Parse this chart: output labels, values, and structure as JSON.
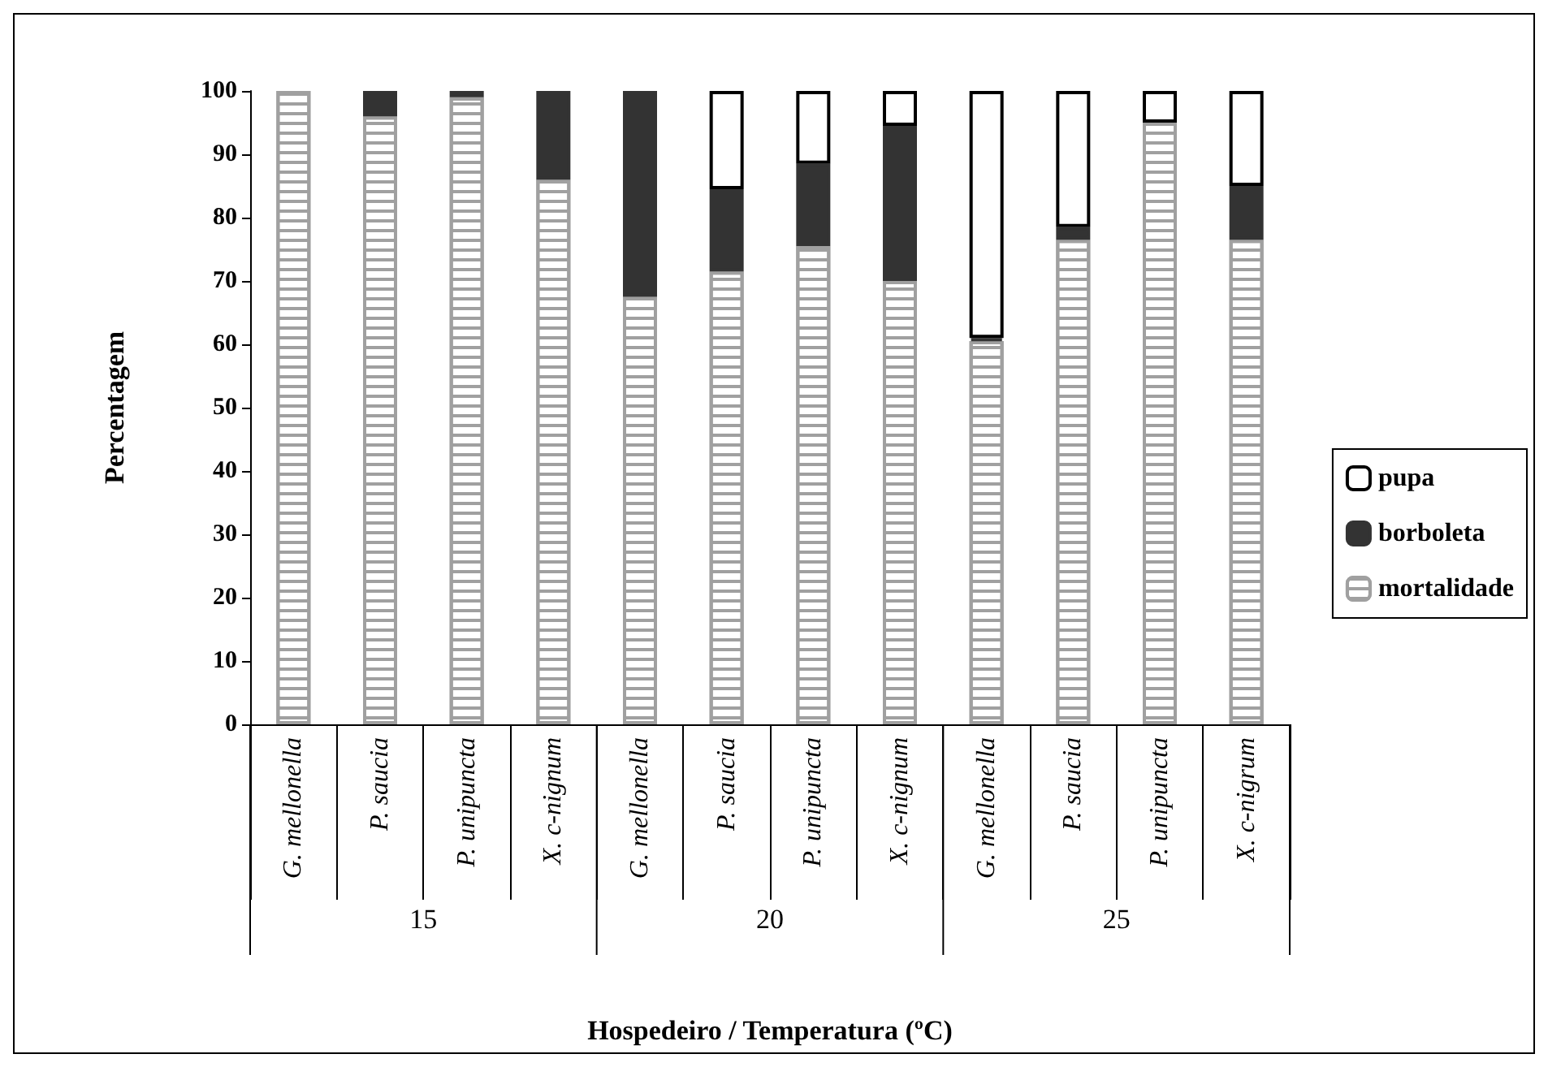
{
  "chart_data": {
    "type": "bar",
    "stacked": true,
    "xlabel": "Hospedeiro / Temperatura (ºC)",
    "ylabel": "Percentagem",
    "categories": [
      "G. mellonella",
      "P. saucia",
      "P. unipuncta",
      "X. c-nignum",
      "G. mellonella",
      "P. saucia",
      "P. unipuncta",
      "X. c-nignum",
      "G. mellonella",
      "P. saucia",
      "P. unipuncta",
      "X. c-nigrum"
    ],
    "series": [
      {
        "name": "mortalidade",
        "color": "#a0a0a0",
        "values": [
          100,
          96,
          99,
          86,
          67.5,
          71.5,
          75.5,
          70,
          60.5,
          76.5,
          95,
          76.5
        ]
      },
      {
        "name": "borboleta",
        "color": "#333333",
        "values": [
          0,
          4,
          1,
          14,
          32.5,
          13,
          13,
          24.5,
          0.5,
          2,
          0,
          8.5
        ]
      },
      {
        "name": "pupa",
        "color": "#ffffff",
        "values": [
          0,
          0,
          0,
          0,
          0,
          15.5,
          11.5,
          5.5,
          39,
          21.5,
          5,
          15
        ]
      }
    ],
    "annotations": [
      "15",
      "20",
      "25"
    ],
    "ylim": [
      0,
      100
    ],
    "yticks": [
      0,
      10,
      20,
      30,
      40,
      50,
      60,
      70,
      80,
      90,
      100
    ],
    "grid": false,
    "legend": "right"
  }
}
